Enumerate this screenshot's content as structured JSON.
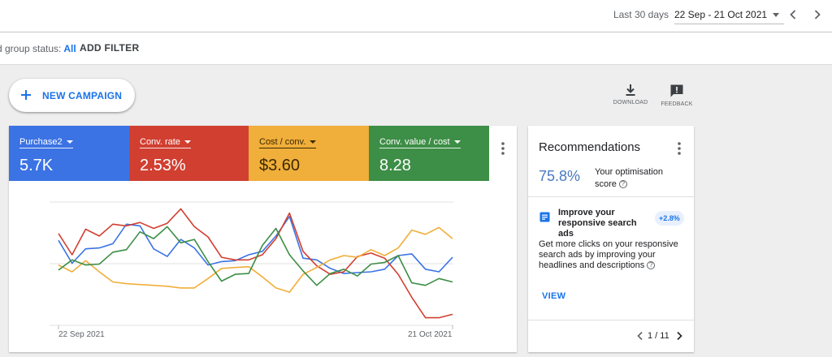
{
  "header": {
    "date_range_label": "Last 30 days",
    "date_range_value": "22 Sep - 21 Oct 2021"
  },
  "filter_bar": {
    "status_label": "d group status:",
    "status_value": "All",
    "add_filter": "ADD FILTER"
  },
  "toolbar": {
    "new_campaign": "NEW CAMPAIGN",
    "download": "DOWNLOAD",
    "feedback": "FEEDBACK"
  },
  "metrics": [
    {
      "name": "Purchase2",
      "value": "5.7K",
      "color": "#3b73e4"
    },
    {
      "name": "Conv. rate",
      "value": "2.53%",
      "color": "#d13f31"
    },
    {
      "name": "Cost / conv.",
      "value": "$3.60",
      "color": "#f0ae3a"
    },
    {
      "name": "Conv. value / cost",
      "value": "8.28",
      "color": "#3d8e46"
    }
  ],
  "chart_data": {
    "type": "line",
    "x_start_label": "22 Sep 2021",
    "x_end_label": "21 Oct 2021",
    "x": [
      1,
      2,
      3,
      4,
      5,
      6,
      7,
      8,
      9,
      10,
      11,
      12,
      13,
      14,
      15,
      16,
      17,
      18,
      19,
      20,
      21,
      22,
      23,
      24,
      25,
      26,
      27,
      28,
      29,
      30
    ],
    "series": [
      {
        "name": "Purchase2",
        "color": "#3b73e4",
        "values": [
          55,
          28,
          45,
          46,
          51,
          74,
          72,
          45,
          36,
          56,
          46,
          26,
          30,
          31,
          38,
          42,
          60,
          83,
          34,
          32,
          22,
          16,
          17,
          18,
          21,
          37,
          39,
          21,
          18,
          35
        ]
      },
      {
        "name": "Conv. rate",
        "color": "#d13f31",
        "values": [
          63,
          38,
          68,
          60,
          74,
          72,
          76,
          69,
          75,
          92,
          71,
          59,
          35,
          32,
          32,
          38,
          57,
          87,
          42,
          25,
          15,
          18,
          36,
          40,
          34,
          15,
          -12,
          -36,
          -36,
          -32
        ]
      },
      {
        "name": "Cost / conv.",
        "color": "#f0ae3a",
        "values": [
          26,
          18,
          31,
          18,
          6,
          4,
          3,
          2,
          1,
          -1,
          -1,
          10,
          22,
          23,
          24,
          12,
          -1,
          -6,
          15,
          23,
          32,
          37,
          35,
          44,
          37,
          46,
          67,
          62,
          70,
          57
        ]
      },
      {
        "name": "Conv. value / cost",
        "color": "#3d8e46",
        "values": [
          20,
          32,
          26,
          27,
          41,
          44,
          65,
          57,
          71,
          52,
          56,
          30,
          7,
          15,
          16,
          49,
          69,
          38,
          19,
          2,
          16,
          21,
          13,
          27,
          29,
          37,
          5,
          2,
          10,
          6
        ]
      }
    ]
  },
  "recommendations": {
    "title": "Recommendations",
    "score": "75.8%",
    "score_label": "Your optimisation score",
    "item_title": "Improve your responsive search ads",
    "item_badge": "+2.8%",
    "item_description": "Get more clicks on your responsive search ads by improving your headlines and descriptions",
    "view": "VIEW",
    "pager": "1 / 11"
  }
}
